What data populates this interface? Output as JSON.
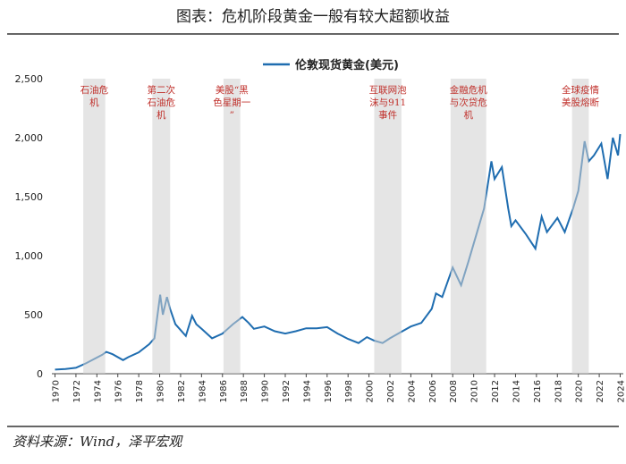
{
  "chart_data": {
    "type": "line",
    "title": "图表：危机阶段黄金一般有较大超额收益",
    "source": "资料来源：Wind，泽平宏观",
    "x": [
      1970,
      1971,
      1972,
      1973,
      1974.5,
      1974.9,
      1975.5,
      1976.5,
      1977,
      1978,
      1979,
      1979.5,
      1980.05,
      1980.3,
      1980.7,
      1981,
      1981.5,
      1982.5,
      1983.1,
      1983.5,
      1984,
      1985,
      1986,
      1987,
      1987.9,
      1988.5,
      1989,
      1990,
      1991,
      1992,
      1993,
      1994,
      1995,
      1996,
      1997,
      1998,
      1999,
      1999.8,
      2000.5,
      2001.3,
      2002,
      2003,
      2004,
      2005,
      2006,
      2006.4,
      2007,
      2008,
      2008.8,
      2009.5,
      2010,
      2011,
      2011.7,
      2012,
      2012.7,
      2013.3,
      2013.6,
      2014,
      2015,
      2015.9,
      2016.5,
      2017,
      2018,
      2018.7,
      2019.5,
      2020,
      2020.6,
      2021,
      2021.5,
      2022.2,
      2022.8,
      2023.3,
      2023.8,
      2024
    ],
    "series": [
      {
        "name": "伦敦现货黄金(美元)",
        "color": "#1f6db0",
        "values": [
          35,
          40,
          50,
          90,
          160,
          185,
          165,
          115,
          140,
          180,
          250,
          300,
          670,
          500,
          650,
          550,
          420,
          320,
          490,
          420,
          380,
          300,
          340,
          420,
          480,
          430,
          380,
          400,
          360,
          340,
          360,
          385,
          385,
          395,
          340,
          295,
          260,
          310,
          280,
          260,
          300,
          350,
          400,
          430,
          550,
          680,
          650,
          900,
          750,
          950,
          1100,
          1400,
          1800,
          1650,
          1750,
          1400,
          1250,
          1300,
          1180,
          1060,
          1330,
          1200,
          1320,
          1200,
          1400,
          1550,
          1970,
          1800,
          1850,
          1950,
          1650,
          2000,
          1850,
          2030
        ]
      }
    ],
    "xlim": [
      1969.7,
      2024.3
    ],
    "xticks": [
      1970,
      1972,
      1974,
      1976,
      1978,
      1980,
      1982,
      1984,
      1986,
      1988,
      1990,
      1992,
      1994,
      1996,
      1998,
      2000,
      2002,
      2004,
      2006,
      2008,
      2010,
      2012,
      2014,
      2016,
      2018,
      2020,
      2022,
      2024
    ],
    "ylim": [
      0,
      2500
    ],
    "yticks": [
      0,
      500,
      {
        "value": 1000,
        "label": "1,000"
      },
      {
        "value": 1500,
        "label": "1,500"
      },
      {
        "value": 2000,
        "label": "2,000"
      },
      {
        "value": 2500,
        "label": "2,500"
      }
    ],
    "annotations": [
      {
        "lines": [
          "石油危",
          "机"
        ],
        "x": [
          1972.7,
          1974.8
        ]
      },
      {
        "lines": [
          "第二次",
          "石油危",
          "机"
        ],
        "x": [
          1979.3,
          1981
        ]
      },
      {
        "lines": [
          "美股“黑",
          "色星期一",
          "”"
        ],
        "x": [
          1986.1,
          1987.7
        ]
      },
      {
        "lines": [
          "互联网泡",
          "沫与911",
          "事件"
        ],
        "x": [
          2000.5,
          2003.1
        ]
      },
      {
        "lines": [
          "金融危机",
          "与次贷危",
          "机"
        ],
        "x": [
          2007.8,
          2011.2
        ]
      },
      {
        "lines": [
          "全球疫情",
          "美股熔断"
        ],
        "x": [
          2019.4,
          2021
        ]
      }
    ],
    "shade_color": "#d0d0d0"
  }
}
